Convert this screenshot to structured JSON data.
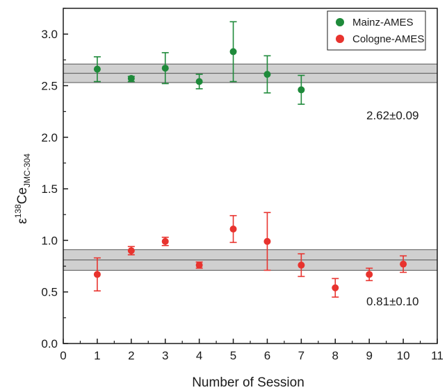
{
  "chart_data": {
    "type": "scatter",
    "title": "",
    "xlabel": "Number of Session",
    "ylabel": {
      "epsilon": "ε",
      "superscript": "138",
      "base": "Ce",
      "subscript": "JMC-304"
    },
    "xlim": [
      0,
      11
    ],
    "ylim": [
      0.0,
      3.25
    ],
    "x_ticks": [
      "0",
      "1",
      "2",
      "3",
      "4",
      "5",
      "6",
      "7",
      "8",
      "9",
      "10",
      "11"
    ],
    "y_ticks": [
      "0.0",
      "0.5",
      "1.0",
      "1.5",
      "2.0",
      "2.5",
      "3.0"
    ],
    "grid": false,
    "legend_position": "top-right",
    "series": [
      {
        "name": "Mainz-AMES",
        "color": "#1e8a3a",
        "x": [
          1,
          2,
          3,
          4,
          5,
          6,
          7
        ],
        "y": [
          2.66,
          2.57,
          2.67,
          2.54,
          2.83,
          2.61,
          2.46
        ],
        "err_low": [
          0.12,
          0.03,
          0.15,
          0.07,
          0.29,
          0.18,
          0.14
        ],
        "err_high": [
          0.12,
          0.02,
          0.15,
          0.07,
          0.29,
          0.18,
          0.14
        ],
        "band": {
          "mean": 2.62,
          "half_width": 0.09,
          "label": "2.62±0.09"
        }
      },
      {
        "name": "Cologne-AMES",
        "color": "#e8332e",
        "x": [
          1,
          2,
          3,
          4,
          5,
          6,
          7,
          8,
          9,
          10
        ],
        "y": [
          0.67,
          0.9,
          0.99,
          0.76,
          1.11,
          0.99,
          0.76,
          0.54,
          0.67,
          0.77
        ],
        "err_low": [
          0.16,
          0.04,
          0.04,
          0.03,
          0.13,
          0.28,
          0.11,
          0.09,
          0.06,
          0.08
        ],
        "err_high": [
          0.16,
          0.04,
          0.04,
          0.03,
          0.13,
          0.28,
          0.11,
          0.09,
          0.06,
          0.08
        ],
        "band": {
          "mean": 0.81,
          "half_width": 0.1,
          "label": "0.81±0.10"
        }
      }
    ]
  }
}
